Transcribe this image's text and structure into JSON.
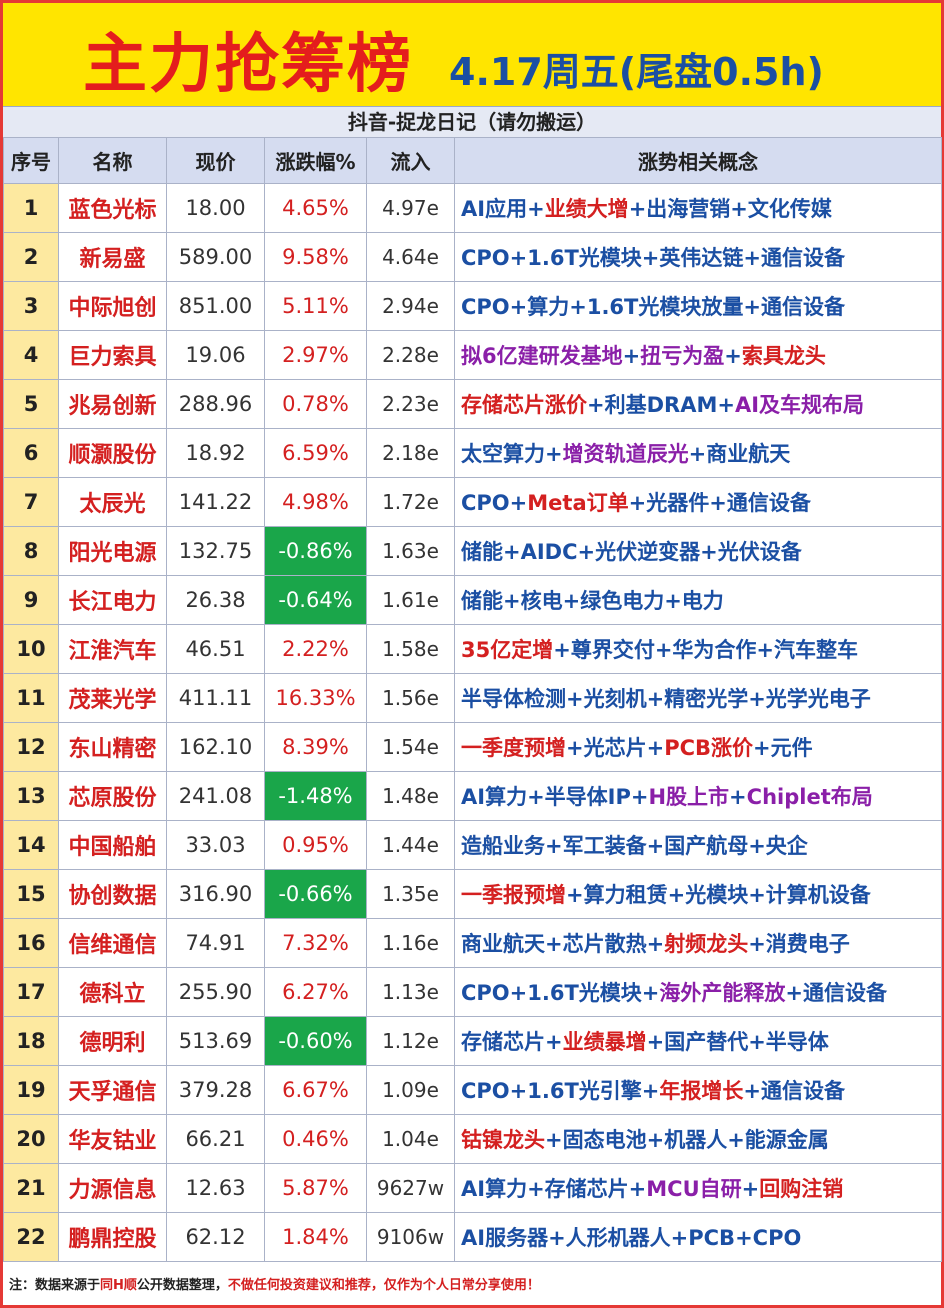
{
  "header": {
    "title_main": "主力抢筹榜",
    "title_sub": "4.17周五(尾盘0.5h)",
    "subheader": "抖音-捉龙日记（请勿搬运）"
  },
  "colors": {
    "blue": "#1b4fa3",
    "red": "#d42020",
    "purple": "#8a1fa8",
    "negative_bg": "#1aa64a",
    "header_bg": "#ffe500"
  },
  "table": {
    "columns": [
      "序号",
      "名称",
      "现价",
      "涨跌幅%",
      "流入",
      "涨势相关概念"
    ],
    "rows": [
      {
        "idx": "1",
        "name": "蓝色光标",
        "price": "18.00",
        "pct": "4.65%",
        "flow": "4.97e",
        "neg": false,
        "concept": [
          [
            "AI应用",
            "b"
          ],
          [
            "+",
            "b"
          ],
          [
            "业绩大增",
            "r"
          ],
          [
            "+出海营销+文化传媒",
            "b"
          ]
        ]
      },
      {
        "idx": "2",
        "name": "新易盛",
        "price": "589.00",
        "pct": "9.58%",
        "flow": "4.64e",
        "neg": false,
        "concept": [
          [
            "CPO+1.6T光模块+英伟达链+通信设备",
            "b"
          ]
        ]
      },
      {
        "idx": "3",
        "name": "中际旭创",
        "price": "851.00",
        "pct": "5.11%",
        "flow": "2.94e",
        "neg": false,
        "concept": [
          [
            "CPO+算力+1.6T光模块放量+通信设备",
            "b"
          ]
        ]
      },
      {
        "idx": "4",
        "name": "巨力索具",
        "price": "19.06",
        "pct": "2.97%",
        "flow": "2.28e",
        "neg": false,
        "concept": [
          [
            "拟6亿建研发基地",
            "p"
          ],
          [
            "+",
            "b"
          ],
          [
            "扭亏为盈",
            "p"
          ],
          [
            "+",
            "b"
          ],
          [
            "索具龙头",
            "r"
          ]
        ]
      },
      {
        "idx": "5",
        "name": "兆易创新",
        "price": "288.96",
        "pct": "0.78%",
        "flow": "2.23e",
        "neg": false,
        "concept": [
          [
            "存储芯片涨价",
            "r"
          ],
          [
            "+利基DRAM+",
            "b"
          ],
          [
            "AI及车规布局",
            "p"
          ]
        ]
      },
      {
        "idx": "6",
        "name": "顺灏股份",
        "price": "18.92",
        "pct": "6.59%",
        "flow": "2.18e",
        "neg": false,
        "concept": [
          [
            "太空算力+",
            "b"
          ],
          [
            "增资轨道辰光",
            "p"
          ],
          [
            "+商业航天",
            "b"
          ]
        ]
      },
      {
        "idx": "7",
        "name": "太辰光",
        "price": "141.22",
        "pct": "4.98%",
        "flow": "1.72e",
        "neg": false,
        "concept": [
          [
            "CPO+",
            "b"
          ],
          [
            "Meta订单",
            "r"
          ],
          [
            "+光器件+通信设备",
            "b"
          ]
        ]
      },
      {
        "idx": "8",
        "name": "阳光电源",
        "price": "132.75",
        "pct": "-0.86%",
        "flow": "1.63e",
        "neg": true,
        "concept": [
          [
            "储能+AIDC+光伏逆变器+光伏设备",
            "b"
          ]
        ]
      },
      {
        "idx": "9",
        "name": "长江电力",
        "price": "26.38",
        "pct": "-0.64%",
        "flow": "1.61e",
        "neg": true,
        "concept": [
          [
            "储能+核电+绿色电力+电力",
            "b"
          ]
        ]
      },
      {
        "idx": "10",
        "name": "江淮汽车",
        "price": "46.51",
        "pct": "2.22%",
        "flow": "1.58e",
        "neg": false,
        "concept": [
          [
            "35亿定增",
            "r"
          ],
          [
            "+尊界交付+华为合作+汽车整车",
            "b"
          ]
        ]
      },
      {
        "idx": "11",
        "name": "茂莱光学",
        "price": "411.11",
        "pct": "16.33%",
        "flow": "1.56e",
        "neg": false,
        "concept": [
          [
            "半导体检测+光刻机+精密光学+光学光电子",
            "b"
          ]
        ]
      },
      {
        "idx": "12",
        "name": "东山精密",
        "price": "162.10",
        "pct": "8.39%",
        "flow": "1.54e",
        "neg": false,
        "concept": [
          [
            "一季度预增",
            "r"
          ],
          [
            "+光芯片+",
            "b"
          ],
          [
            "PCB涨价",
            "r"
          ],
          [
            "+元件",
            "b"
          ]
        ]
      },
      {
        "idx": "13",
        "name": "芯原股份",
        "price": "241.08",
        "pct": "-1.48%",
        "flow": "1.48e",
        "neg": true,
        "concept": [
          [
            "AI算力+半导体IP+",
            "b"
          ],
          [
            "H股上市",
            "p"
          ],
          [
            "+",
            "b"
          ],
          [
            "Chiplet布局",
            "p"
          ]
        ]
      },
      {
        "idx": "14",
        "name": "中国船舶",
        "price": "33.03",
        "pct": "0.95%",
        "flow": "1.44e",
        "neg": false,
        "concept": [
          [
            "造船业务+军工装备+国产航母+央企",
            "b"
          ]
        ]
      },
      {
        "idx": "15",
        "name": "协创数据",
        "price": "316.90",
        "pct": "-0.66%",
        "flow": "1.35e",
        "neg": true,
        "concept": [
          [
            "一季报预增",
            "r"
          ],
          [
            "+算力租赁+光模块+计算机设备",
            "b"
          ]
        ]
      },
      {
        "idx": "16",
        "name": "信维通信",
        "price": "74.91",
        "pct": "7.32%",
        "flow": "1.16e",
        "neg": false,
        "concept": [
          [
            "商业航天+芯片散热+",
            "b"
          ],
          [
            "射频龙头",
            "r"
          ],
          [
            "+消费电子",
            "b"
          ]
        ]
      },
      {
        "idx": "17",
        "name": "德科立",
        "price": "255.90",
        "pct": "6.27%",
        "flow": "1.13e",
        "neg": false,
        "concept": [
          [
            "CPO+1.6T光模块+",
            "b"
          ],
          [
            "海外产能释放",
            "p"
          ],
          [
            "+通信设备",
            "b"
          ]
        ]
      },
      {
        "idx": "18",
        "name": "德明利",
        "price": "513.69",
        "pct": "-0.60%",
        "flow": "1.12e",
        "neg": true,
        "concept": [
          [
            "存储芯片+",
            "b"
          ],
          [
            "业绩暴增",
            "r"
          ],
          [
            "+国产替代+半导体",
            "b"
          ]
        ]
      },
      {
        "idx": "19",
        "name": "天孚通信",
        "price": "379.28",
        "pct": "6.67%",
        "flow": "1.09e",
        "neg": false,
        "concept": [
          [
            "CPO+1.6T光引擎+",
            "b"
          ],
          [
            "年报增长",
            "r"
          ],
          [
            "+通信设备",
            "b"
          ]
        ]
      },
      {
        "idx": "20",
        "name": "华友钴业",
        "price": "66.21",
        "pct": "0.46%",
        "flow": "1.04e",
        "neg": false,
        "concept": [
          [
            "钴镍龙头",
            "r"
          ],
          [
            "+固态电池+机器人+能源金属",
            "b"
          ]
        ]
      },
      {
        "idx": "21",
        "name": "力源信息",
        "price": "12.63",
        "pct": "5.87%",
        "flow": "9627w",
        "neg": false,
        "concept": [
          [
            "AI算力+存储芯片+",
            "b"
          ],
          [
            "MCU自研",
            "p"
          ],
          [
            "+",
            "b"
          ],
          [
            "回购注销",
            "r"
          ]
        ]
      },
      {
        "idx": "22",
        "name": "鹏鼎控股",
        "price": "62.12",
        "pct": "1.84%",
        "flow": "9106w",
        "neg": false,
        "concept": [
          [
            "AI服务器+人形机器人+PCB+CPO",
            "b"
          ]
        ]
      }
    ]
  },
  "footer": {
    "prefix": "注：数据来源于",
    "source": "同H顺",
    "middle": "公开数据整理，",
    "disclaimer": "不做任何投资建议和推荐，仅作为个人日常分享使用！"
  }
}
